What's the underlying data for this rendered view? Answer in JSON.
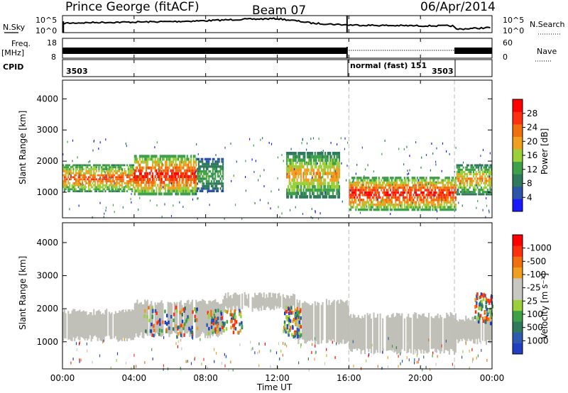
{
  "header": {
    "station": "Prince George (fitACF)",
    "beam": "Beam 07",
    "date": "06/Apr/2014"
  },
  "side_labels": {
    "nsky": "N.Sky",
    "freq_line1": "Freq.",
    "freq_line2": "[MHz]",
    "cpid": "CPID",
    "nsearch": "N.Search",
    "nave": "Nave"
  },
  "strip_ticks": {
    "noise_left_top": "10^5",
    "noise_left_bottom": "10^0",
    "noise_right_top": "10^5",
    "noise_right_bottom": "10^0",
    "freq_left_top": "18",
    "freq_left_bottom": "8",
    "nave_right_top": "60",
    "nave_right_bottom": "0"
  },
  "cpid_labels": {
    "left": "3503",
    "mode": "normal (fast) 151",
    "right": "3503"
  },
  "panels": {
    "power": {
      "ylabel": "Slant Range [km]",
      "cbar_label": "Power [dB]"
    },
    "velocity": {
      "ylabel": "Slant Range [km]",
      "cbar_label": "Velocity [m s⁻¹]"
    }
  },
  "xaxis": {
    "label": "Time UT",
    "ticks": [
      "00:00",
      "04:00",
      "08:00",
      "12:00",
      "16:00",
      "20:00",
      "00:00"
    ]
  },
  "yticks": [
    "1000",
    "2000",
    "3000",
    "4000"
  ],
  "colors": {
    "power_scale": [
      "#1a1aff",
      "#2c55a8",
      "#2f7a5a",
      "#3fa04a",
      "#9ad13a",
      "#f0a020",
      "#f07010",
      "#ff3010",
      "#ff0000"
    ],
    "velocity_scale": [
      "#2040c0",
      "#2f5ab0",
      "#2f7a5a",
      "#3fa04a",
      "#9ad13a",
      "#c8c8c0",
      "#c8c8c0",
      "#f0a020",
      "#f07010",
      "#ff3010",
      "#ff0000"
    ],
    "ground_scatter": "#c0c0b8"
  },
  "chart_data": [
    {
      "type": "line",
      "name": "noise strip",
      "x_hours": [
        0,
        2,
        4,
        6,
        8,
        10,
        12,
        13,
        14,
        15,
        16,
        18,
        20,
        21.8,
        22,
        24
      ],
      "y_relative": [
        0.55,
        0.6,
        0.62,
        0.65,
        0.7,
        0.78,
        0.82,
        0.7,
        0.55,
        0.5,
        0.45,
        0.42,
        0.4,
        0.4,
        0.2,
        0.3
      ],
      "ylim_labels": [
        "10^0",
        "10^5"
      ]
    },
    {
      "type": "line",
      "name": "frequency strip",
      "x_hours": [
        0,
        16,
        16,
        22,
        22,
        24
      ],
      "ylim": [
        8,
        18
      ],
      "nave_ylim": [
        0,
        60
      ]
    },
    {
      "type": "heatmap",
      "title": "Power",
      "xlabel": "Time UT",
      "ylabel": "Slant Range [km]",
      "xlim_hours": [
        0,
        24
      ],
      "ylim": [
        180,
        4600
      ],
      "cbar_label": "Power [dB]",
      "cbar_ticks": [
        "4",
        "8",
        "12",
        "16",
        "20",
        "24",
        "28"
      ],
      "echo_bands": [
        {
          "t": [
            0,
            4
          ],
          "r": [
            1000,
            1900
          ],
          "peak_db": 24
        },
        {
          "t": [
            4,
            7.5
          ],
          "r": [
            900,
            2200
          ],
          "peak_db": 28
        },
        {
          "t": [
            7.5,
            9
          ],
          "r": [
            1000,
            2100
          ],
          "peak_db": 12
        },
        {
          "t": [
            12.5,
            15.5
          ],
          "r": [
            800,
            2300
          ],
          "peak_db": 20
        },
        {
          "t": [
            16,
            22
          ],
          "r": [
            400,
            1500
          ],
          "peak_db": 28
        },
        {
          "t": [
            22,
            24
          ],
          "r": [
            900,
            1900
          ],
          "peak_db": 20
        }
      ]
    },
    {
      "type": "heatmap",
      "title": "Velocity",
      "xlabel": "Time UT",
      "ylabel": "Slant Range [km]",
      "xlim_hours": [
        0,
        24
      ],
      "ylim": [
        180,
        4600
      ],
      "cbar_label": "Velocity [m s⁻¹]",
      "cbar_ticks": [
        "1000",
        "500",
        "100",
        "25",
        "-25",
        "-100",
        "-500",
        "-1000"
      ]
    }
  ]
}
